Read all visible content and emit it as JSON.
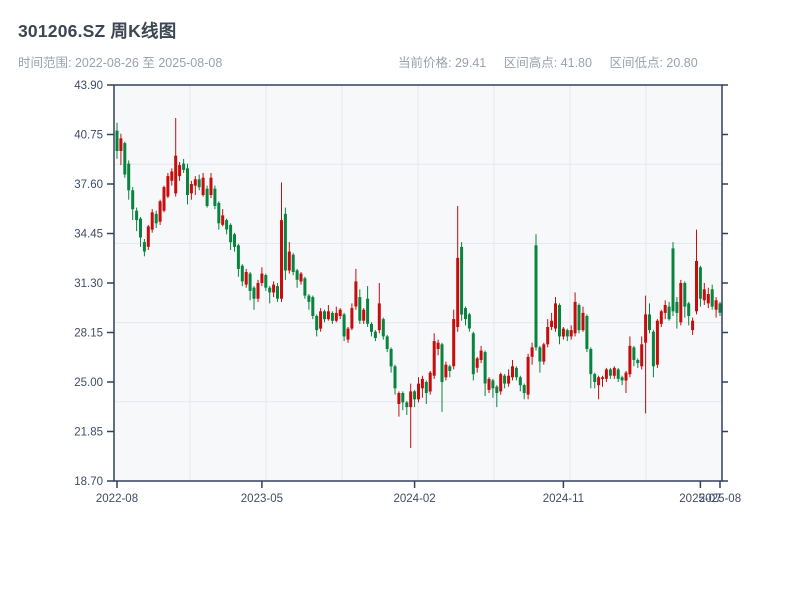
{
  "header": {
    "title": "301206.SZ 周K线图",
    "time_range_label": "时间范围: 2022-08-26 至 2025-08-08",
    "current_price_label": "当前价格: 29.41",
    "range_high_label": "区间高点: 41.80",
    "range_low_label": "区间低点: 20.80"
  },
  "chart_data": {
    "type": "candlestick",
    "title": "301206.SZ 周K线图",
    "frequency": "weekly",
    "start_date": "2022-08-26",
    "end_date": "2025-08-08",
    "current_price": 29.41,
    "range_high": 41.8,
    "range_low": 20.8,
    "ylim": [
      18.7,
      43.9
    ],
    "y_ticks": [
      "43.90",
      "40.75",
      "37.60",
      "34.45",
      "31.30",
      "28.15",
      "25.00",
      "21.85",
      "18.70"
    ],
    "x_ticks": [
      {
        "week": 0,
        "label": "2022-08"
      },
      {
        "week": 37,
        "label": "2023-05"
      },
      {
        "week": 76,
        "label": "2024-02"
      },
      {
        "week": 114,
        "label": "2024-11"
      },
      {
        "week": 149,
        "label": "2025-07"
      },
      {
        "week": 154,
        "label": "2025-08"
      }
    ],
    "colors": {
      "up": "#c60d0e",
      "down": "#08843f",
      "plot_bg": "#f7f8fa",
      "grid": "#e3e7ef",
      "frame": "#32415c",
      "label": "#3d4c66"
    },
    "grid": {
      "h_fractions": [
        0.2,
        0.4,
        0.6,
        0.8
      ],
      "v_divisions": 8
    },
    "ohlc": [
      [
        41.0,
        41.5,
        39.2,
        39.7
      ],
      [
        39.7,
        40.8,
        38.8,
        40.5
      ],
      [
        40.2,
        40.3,
        38.0,
        38.2
      ],
      [
        38.9,
        39.1,
        36.6,
        37.2
      ],
      [
        37.2,
        37.4,
        35.3,
        36.0
      ],
      [
        35.9,
        36.1,
        34.6,
        35.3
      ],
      [
        35.4,
        35.5,
        33.6,
        34.2
      ],
      [
        33.9,
        34.1,
        33.0,
        33.3
      ],
      [
        33.6,
        35.0,
        33.4,
        34.9
      ],
      [
        34.7,
        36.0,
        34.5,
        35.8
      ],
      [
        35.7,
        35.9,
        34.8,
        35.1
      ],
      [
        35.2,
        36.6,
        35.0,
        36.5
      ],
      [
        35.9,
        37.5,
        35.8,
        37.4
      ],
      [
        36.8,
        38.3,
        36.7,
        38.1
      ],
      [
        37.8,
        38.6,
        37.5,
        38.4
      ],
      [
        37.0,
        41.8,
        36.8,
        39.4
      ],
      [
        38.1,
        39.0,
        37.8,
        38.8
      ],
      [
        38.9,
        39.2,
        38.3,
        38.5
      ],
      [
        38.6,
        38.9,
        36.3,
        36.9
      ],
      [
        37.0,
        37.8,
        36.6,
        37.6
      ],
      [
        37.5,
        38.1,
        36.9,
        37.9
      ],
      [
        37.9,
        38.2,
        37.2,
        37.4
      ],
      [
        36.9,
        38.3,
        36.8,
        38.0
      ],
      [
        37.3,
        37.5,
        36.1,
        36.2
      ],
      [
        36.9,
        38.3,
        36.7,
        38.0
      ],
      [
        37.3,
        37.5,
        36.0,
        36.2
      ],
      [
        36.4,
        36.5,
        34.7,
        35.1
      ],
      [
        35.0,
        36.0,
        34.9,
        35.6
      ],
      [
        35.3,
        35.4,
        34.4,
        34.7
      ],
      [
        35.0,
        35.1,
        33.4,
        33.9
      ],
      [
        34.4,
        34.5,
        33.3,
        33.6
      ],
      [
        33.7,
        33.8,
        31.7,
        32.2
      ],
      [
        32.4,
        32.5,
        31.1,
        31.4
      ],
      [
        31.2,
        32.2,
        31.0,
        32.0
      ],
      [
        31.9,
        32.0,
        30.2,
        30.8
      ],
      [
        31.0,
        31.1,
        29.6,
        30.3
      ],
      [
        30.3,
        31.5,
        30.1,
        31.3
      ],
      [
        31.3,
        32.3,
        31.1,
        31.9
      ],
      [
        31.8,
        31.9,
        30.8,
        31.0
      ],
      [
        31.0,
        31.1,
        30.0,
        30.7
      ],
      [
        30.7,
        31.4,
        30.4,
        31.2
      ],
      [
        31.1,
        31.3,
        30.1,
        30.3
      ],
      [
        30.3,
        37.7,
        30.1,
        35.3
      ],
      [
        35.7,
        36.1,
        31.5,
        32.1
      ],
      [
        32.1,
        33.9,
        31.9,
        33.3
      ],
      [
        33.1,
        33.2,
        31.8,
        32.0
      ],
      [
        32.1,
        32.2,
        31.0,
        31.5
      ],
      [
        31.4,
        32.0,
        31.2,
        31.9
      ],
      [
        31.6,
        31.7,
        30.3,
        30.5
      ],
      [
        30.5,
        30.6,
        29.6,
        30.1
      ],
      [
        30.4,
        30.5,
        29.0,
        29.2
      ],
      [
        29.2,
        29.3,
        27.9,
        28.3
      ],
      [
        28.4,
        29.7,
        28.2,
        29.5
      ],
      [
        29.5,
        29.6,
        28.8,
        29.0
      ],
      [
        29.0,
        29.9,
        28.9,
        29.5
      ],
      [
        29.4,
        29.5,
        28.7,
        28.9
      ],
      [
        28.9,
        29.8,
        28.8,
        29.4
      ],
      [
        29.2,
        29.7,
        29.0,
        29.6
      ],
      [
        29.3,
        29.4,
        27.6,
        27.9
      ],
      [
        27.7,
        28.5,
        27.5,
        28.4
      ],
      [
        28.4,
        30.0,
        28.3,
        29.7
      ],
      [
        29.8,
        32.2,
        29.6,
        31.4
      ],
      [
        30.4,
        30.9,
        28.7,
        28.9
      ],
      [
        28.9,
        29.7,
        28.7,
        29.6
      ],
      [
        30.3,
        31.1,
        28.5,
        28.7
      ],
      [
        28.7,
        28.8,
        27.9,
        28.2
      ],
      [
        28.2,
        28.3,
        27.6,
        27.8
      ],
      [
        28.3,
        31.3,
        28.1,
        30.0
      ],
      [
        29.0,
        29.1,
        27.7,
        27.9
      ],
      [
        27.9,
        28.0,
        26.9,
        27.1
      ],
      [
        27.1,
        27.2,
        25.6,
        26.0
      ],
      [
        26.0,
        26.1,
        24.2,
        24.6
      ],
      [
        23.6,
        24.4,
        22.8,
        24.3
      ],
      [
        24.3,
        24.4,
        23.2,
        23.7
      ],
      [
        23.7,
        23.8,
        22.9,
        23.4
      ],
      [
        23.4,
        24.9,
        20.8,
        24.4
      ],
      [
        24.4,
        24.5,
        23.4,
        23.9
      ],
      [
        23.9,
        25.3,
        23.7,
        24.9
      ],
      [
        24.6,
        25.4,
        24.0,
        25.2
      ],
      [
        25.0,
        25.1,
        23.6,
        24.3
      ],
      [
        24.4,
        25.7,
        24.2,
        25.6
      ],
      [
        25.4,
        28.1,
        25.2,
        27.6
      ],
      [
        27.1,
        27.7,
        26.7,
        27.5
      ],
      [
        27.4,
        27.5,
        23.1,
        25.0
      ],
      [
        25.3,
        26.3,
        25.1,
        26.1
      ],
      [
        26.0,
        26.1,
        25.3,
        25.7
      ],
      [
        26.0,
        29.6,
        25.8,
        29.0
      ],
      [
        28.5,
        36.2,
        28.2,
        32.9
      ],
      [
        33.6,
        33.9,
        28.9,
        29.3
      ],
      [
        29.7,
        29.8,
        28.6,
        29.0
      ],
      [
        29.3,
        29.4,
        28.2,
        28.4
      ],
      [
        28.1,
        28.2,
        25.1,
        25.5
      ],
      [
        25.9,
        26.6,
        25.6,
        26.5
      ],
      [
        26.4,
        27.3,
        26.2,
        27.0
      ],
      [
        26.9,
        27.0,
        24.1,
        24.9
      ],
      [
        24.5,
        25.3,
        24.3,
        25.2
      ],
      [
        25.1,
        25.2,
        24.0,
        24.6
      ],
      [
        24.7,
        24.8,
        23.4,
        24.3
      ],
      [
        24.4,
        25.6,
        24.2,
        25.5
      ],
      [
        25.4,
        25.5,
        24.6,
        24.9
      ],
      [
        24.9,
        25.8,
        24.7,
        25.4
      ],
      [
        25.3,
        26.4,
        25.1,
        26.0
      ],
      [
        25.9,
        26.0,
        25.1,
        25.3
      ],
      [
        25.3,
        25.4,
        24.4,
        24.8
      ],
      [
        24.8,
        24.9,
        23.9,
        24.3
      ],
      [
        24.2,
        26.8,
        23.9,
        26.6
      ],
      [
        26.6,
        27.5,
        26.1,
        27.2
      ],
      [
        33.7,
        34.4,
        27.0,
        27.2
      ],
      [
        27.2,
        27.3,
        25.6,
        26.3
      ],
      [
        26.3,
        27.5,
        26.1,
        27.4
      ],
      [
        27.4,
        29.0,
        27.2,
        28.5
      ],
      [
        28.5,
        29.4,
        28.3,
        28.9
      ],
      [
        28.4,
        30.4,
        28.2,
        30.0
      ],
      [
        29.9,
        30.0,
        27.4,
        27.9
      ],
      [
        27.9,
        28.5,
        27.7,
        28.4
      ],
      [
        28.3,
        28.4,
        27.6,
        27.9
      ],
      [
        27.9,
        28.6,
        27.7,
        28.3
      ],
      [
        28.1,
        30.7,
        27.9,
        30.1
      ],
      [
        29.9,
        30.0,
        28.1,
        28.3
      ],
      [
        28.3,
        29.8,
        28.2,
        29.4
      ],
      [
        29.2,
        29.3,
        26.9,
        27.1
      ],
      [
        27.1,
        27.2,
        24.6,
        25.5
      ],
      [
        25.5,
        25.6,
        24.6,
        25.0
      ],
      [
        24.8,
        25.4,
        23.9,
        25.3
      ],
      [
        25.2,
        25.4,
        24.7,
        25.3
      ],
      [
        25.2,
        25.9,
        25.0,
        25.8
      ],
      [
        25.8,
        25.9,
        25.2,
        25.4
      ],
      [
        25.4,
        26.0,
        25.2,
        25.9
      ],
      [
        25.8,
        25.9,
        25.0,
        25.2
      ],
      [
        25.3,
        25.4,
        24.8,
        25.1
      ],
      [
        25.1,
        25.7,
        24.3,
        25.6
      ],
      [
        25.5,
        27.9,
        25.3,
        27.3
      ],
      [
        27.2,
        27.3,
        26.0,
        26.4
      ],
      [
        26.4,
        26.5,
        25.9,
        26.2
      ],
      [
        26.0,
        27.9,
        25.8,
        27.4
      ],
      [
        27.5,
        30.5,
        23.0,
        29.3
      ],
      [
        29.3,
        30.0,
        28.1,
        28.3
      ],
      [
        28.2,
        28.3,
        25.3,
        26.0
      ],
      [
        26.1,
        29.0,
        25.9,
        28.9
      ],
      [
        28.7,
        29.6,
        28.5,
        29.5
      ],
      [
        29.4,
        30.2,
        29.0,
        29.9
      ],
      [
        29.8,
        30.1,
        28.9,
        29.0
      ],
      [
        33.5,
        33.9,
        29.2,
        29.5
      ],
      [
        30.1,
        30.4,
        28.4,
        29.4
      ],
      [
        28.8,
        31.5,
        28.6,
        31.3
      ],
      [
        31.3,
        31.4,
        29.1,
        29.8
      ],
      [
        30.0,
        30.1,
        28.6,
        29.2
      ],
      [
        28.3,
        29.1,
        28.0,
        28.9
      ],
      [
        29.5,
        34.7,
        29.3,
        32.7
      ],
      [
        32.3,
        32.4,
        29.8,
        30.3
      ],
      [
        30.2,
        31.3,
        29.9,
        30.9
      ],
      [
        30.0,
        31.0,
        29.7,
        30.6
      ],
      [
        30.9,
        31.2,
        29.6,
        29.8
      ],
      [
        29.6,
        30.4,
        29.1,
        30.2
      ],
      [
        30.0,
        30.1,
        29.2,
        29.41
      ]
    ]
  }
}
